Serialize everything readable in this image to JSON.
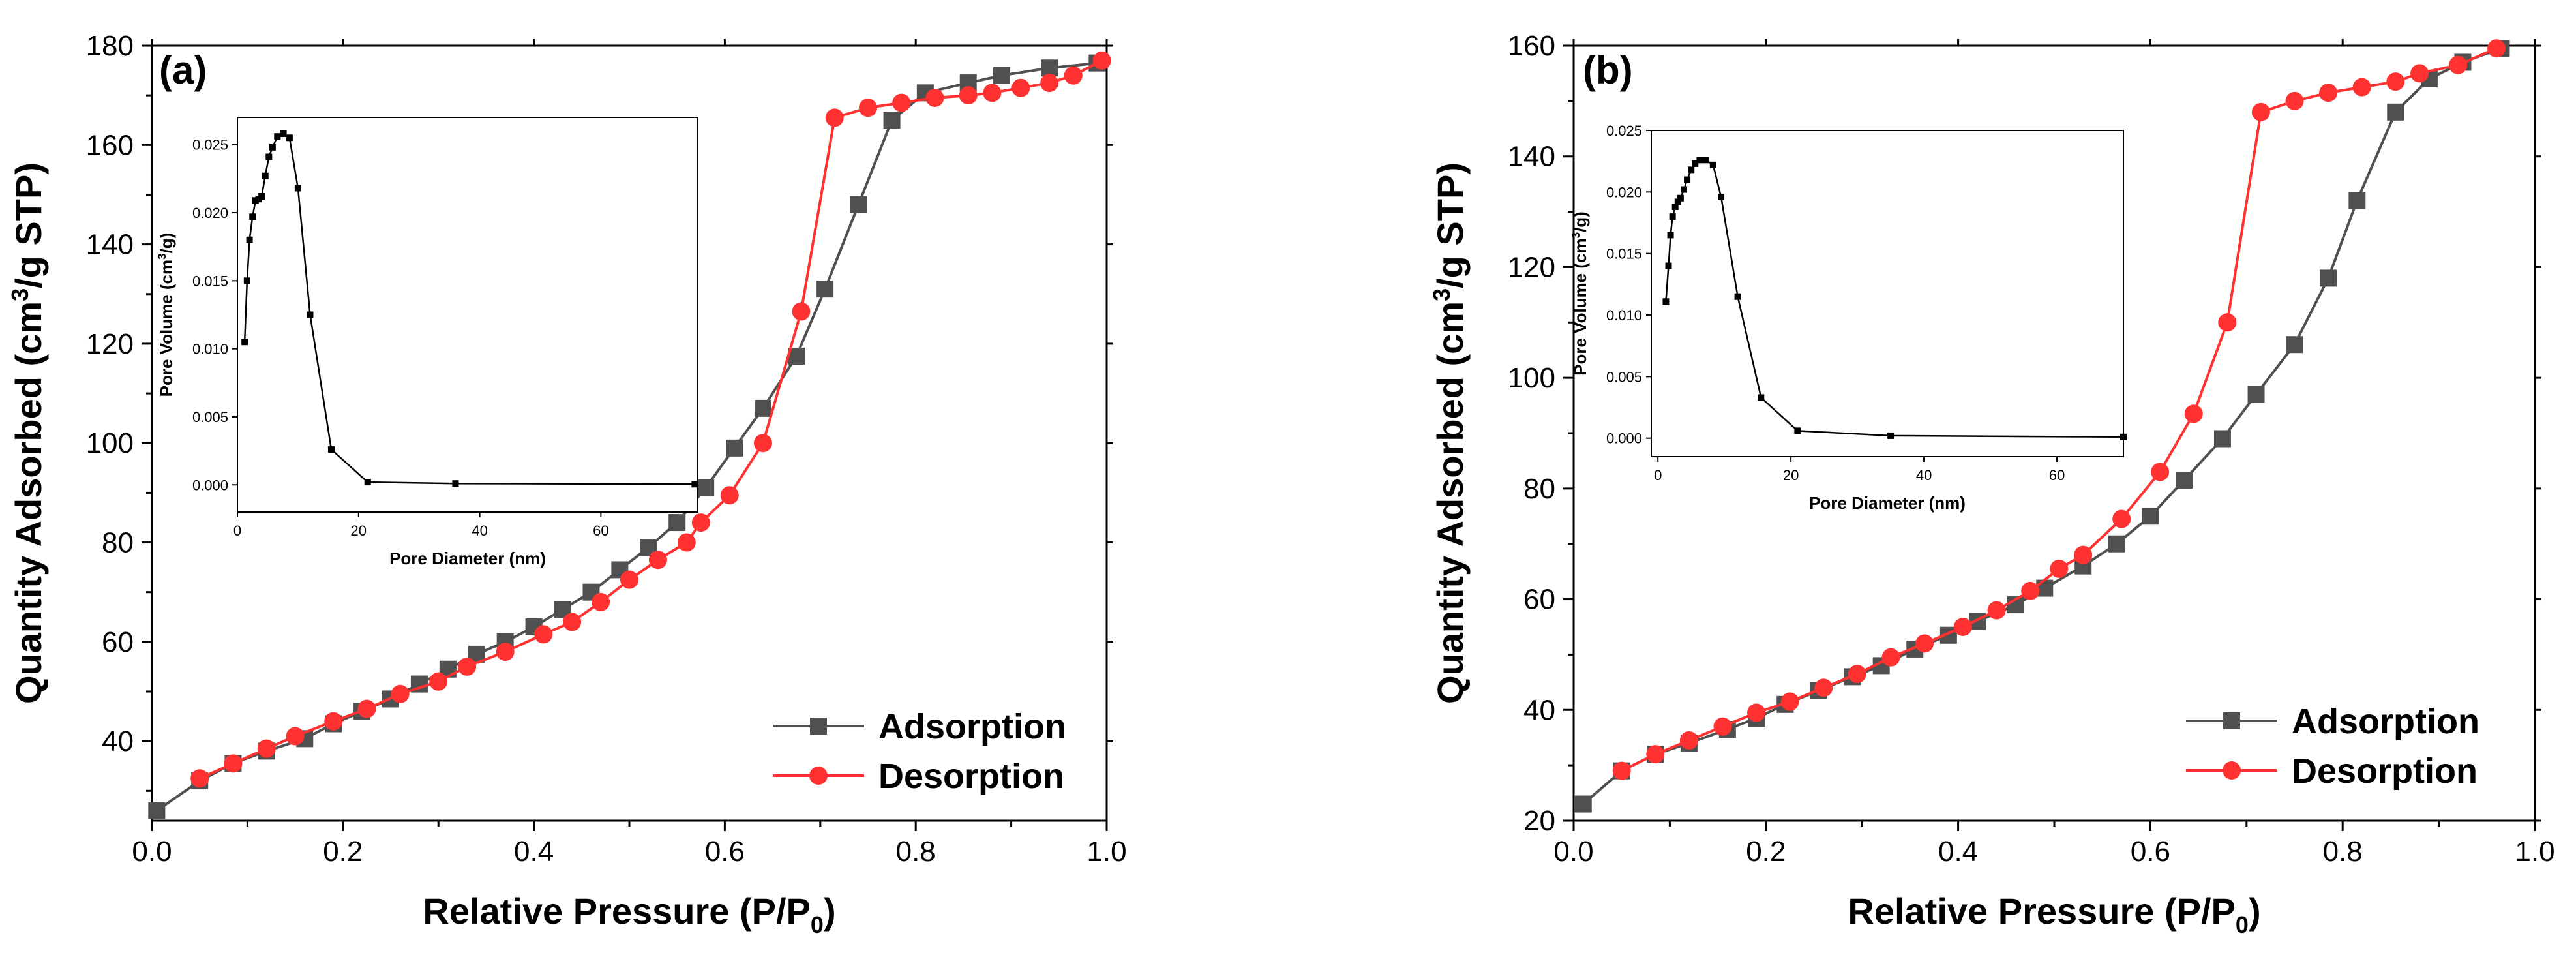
{
  "colors": {
    "adsorption": "#505050",
    "desorption": "#ff3131",
    "axis": "#000000"
  },
  "chart_data": [
    {
      "type": "line",
      "panel_label": "(a)",
      "xlabel": "Relative Pressure (P/P",
      "xlabel_sub": "0",
      "xlabel_end": ")",
      "ylabel": "Quantity Adsorbed (cm",
      "ylabel_sup": "3",
      "ylabel_end": "/g STP)",
      "xlim": [
        0,
        1.0
      ],
      "ylim": [
        24,
        180
      ],
      "xticks": [
        0.0,
        0.2,
        0.4,
        0.6,
        0.8,
        1.0
      ],
      "xtick_labels": [
        "0.0",
        "0.2",
        "0.4",
        "0.6",
        "0.8",
        "1.0"
      ],
      "yticks": [
        40,
        60,
        80,
        100,
        120,
        140,
        160,
        180
      ],
      "ytick_labels": [
        "40",
        "60",
        "80",
        "100",
        "120",
        "140",
        "160",
        "180"
      ],
      "legend": [
        "Adsorption",
        "Desorption"
      ],
      "series": [
        {
          "name": "Adsorption",
          "marker": "square",
          "x": [
            0.005,
            0.05,
            0.085,
            0.12,
            0.16,
            0.19,
            0.22,
            0.25,
            0.28,
            0.31,
            0.34,
            0.37,
            0.4,
            0.43,
            0.46,
            0.49,
            0.52,
            0.55,
            0.58,
            0.61,
            0.64,
            0.675,
            0.705,
            0.74,
            0.775,
            0.81,
            0.855,
            0.89,
            0.94,
            0.99
          ],
          "y": [
            26,
            32,
            35.5,
            38,
            40.5,
            43.5,
            46,
            48.5,
            51.5,
            54.5,
            57.5,
            60,
            63,
            66.5,
            70,
            74.5,
            79,
            84,
            91,
            99,
            107,
            117.5,
            131,
            148,
            165,
            170.5,
            172.5,
            174,
            175.5,
            176.5
          ]
        },
        {
          "name": "Desorption",
          "marker": "circle",
          "x": [
            0.05,
            0.085,
            0.12,
            0.15,
            0.19,
            0.225,
            0.26,
            0.3,
            0.33,
            0.37,
            0.41,
            0.44,
            0.47,
            0.5,
            0.53,
            0.56,
            0.575,
            0.605,
            0.64,
            0.68,
            0.715,
            0.75,
            0.785,
            0.82,
            0.855,
            0.88,
            0.91,
            0.94,
            0.965,
            0.995
          ],
          "y": [
            32.5,
            35.5,
            38.5,
            41,
            44,
            46.5,
            49.5,
            52,
            55,
            58,
            61.5,
            64,
            68,
            72.5,
            76.5,
            80,
            84,
            89.5,
            100,
            126.5,
            165.5,
            167.5,
            168.5,
            169.5,
            170,
            170.5,
            171.5,
            172.5,
            174,
            177
          ]
        }
      ],
      "inset": {
        "xlabel": "Pore Diameter (nm)",
        "ylabel": "Pore Volume (cm",
        "ylabel_sup": "3",
        "ylabel_end": "/g)",
        "xlim": [
          0,
          76
        ],
        "ylim": [
          -0.002,
          0.027
        ],
        "xticks": [
          0,
          20,
          40,
          60
        ],
        "xtick_labels": [
          "0",
          "20",
          "40",
          "60"
        ],
        "yticks": [
          0.0,
          0.005,
          0.01,
          0.015,
          0.02,
          0.025
        ],
        "ytick_labels": [
          "0.000",
          "0.005",
          "0.010",
          "0.015",
          "0.020",
          "0.025"
        ],
        "x": [
          1.2,
          1.6,
          2.0,
          2.5,
          3.0,
          3.5,
          4.0,
          4.6,
          5.2,
          5.8,
          6.6,
          7.6,
          8.6,
          10.0,
          12.0,
          15.5,
          21.5,
          36.0,
          75.5
        ],
        "y": [
          0.0105,
          0.015,
          0.018,
          0.0197,
          0.0209,
          0.021,
          0.0212,
          0.0227,
          0.0241,
          0.0248,
          0.0256,
          0.0258,
          0.0255,
          0.0218,
          0.0125,
          0.0026,
          0.0002,
          0.0001,
          5e-05
        ]
      }
    },
    {
      "type": "line",
      "panel_label": "(b)",
      "xlabel": "Relative Pressure (P/P",
      "xlabel_sub": "0",
      "xlabel_end": ")",
      "ylabel": "Quantity Adsorbed (cm",
      "ylabel_sup": "3",
      "ylabel_end": "/g STP)",
      "xlim": [
        0,
        1.0
      ],
      "ylim": [
        20,
        160
      ],
      "xticks": [
        0.0,
        0.2,
        0.4,
        0.6,
        0.8,
        1.0
      ],
      "xtick_labels": [
        "0.0",
        "0.2",
        "0.4",
        "0.6",
        "0.8",
        "1.0"
      ],
      "yticks": [
        20,
        40,
        60,
        80,
        100,
        120,
        140,
        160
      ],
      "ytick_labels": [
        "20",
        "40",
        "60",
        "80",
        "100",
        "120",
        "140",
        "160"
      ],
      "legend": [
        "Adsorption",
        "Desorption"
      ],
      "series": [
        {
          "name": "Adsorption",
          "marker": "square",
          "x": [
            0.01,
            0.05,
            0.085,
            0.12,
            0.16,
            0.19,
            0.22,
            0.255,
            0.29,
            0.32,
            0.355,
            0.39,
            0.42,
            0.46,
            0.49,
            0.53,
            0.565,
            0.6,
            0.635,
            0.675,
            0.71,
            0.75,
            0.785,
            0.815,
            0.855,
            0.89,
            0.925,
            0.965
          ],
          "y": [
            23,
            29,
            32,
            34,
            36.5,
            38.5,
            41,
            43.5,
            46,
            48,
            51,
            53.5,
            56,
            59,
            62,
            66,
            70,
            75,
            81.5,
            89,
            97,
            106,
            118,
            132,
            148,
            154,
            157,
            159.5
          ]
        },
        {
          "name": "Desorption",
          "marker": "circle",
          "x": [
            0.05,
            0.085,
            0.12,
            0.155,
            0.19,
            0.225,
            0.26,
            0.295,
            0.33,
            0.365,
            0.405,
            0.44,
            0.475,
            0.505,
            0.53,
            0.57,
            0.61,
            0.645,
            0.68,
            0.715,
            0.75,
            0.785,
            0.82,
            0.855,
            0.88,
            0.92,
            0.96
          ],
          "y": [
            29,
            32,
            34.5,
            37,
            39.5,
            41.5,
            44,
            46.5,
            49.5,
            52,
            55,
            58,
            61.5,
            65.5,
            68,
            74.5,
            83,
            93.5,
            110,
            148,
            150,
            151.5,
            152.5,
            153.5,
            155,
            156.5,
            159.5
          ]
        }
      ],
      "inset": {
        "xlabel": "Pore Diameter (nm)",
        "ylabel": "Pore Volume (cm",
        "ylabel_sup": "3",
        "ylabel_end": "/g)",
        "xlim": [
          -1,
          70
        ],
        "ylim": [
          -0.0015,
          0.025
        ],
        "xticks": [
          0,
          20,
          40,
          60
        ],
        "xtick_labels": [
          "0",
          "20",
          "40",
          "60"
        ],
        "yticks": [
          0.0,
          0.005,
          0.01,
          0.015,
          0.02,
          0.025
        ],
        "ytick_labels": [
          "0.000",
          "0.005",
          "0.010",
          "0.015",
          "0.020",
          "0.025"
        ],
        "x": [
          1.2,
          1.6,
          1.9,
          2.2,
          2.6,
          3.0,
          3.4,
          3.9,
          4.4,
          5.0,
          5.6,
          6.3,
          7.2,
          8.3,
          9.5,
          12.0,
          15.5,
          21.0,
          35.0,
          70.0
        ],
        "y": [
          0.0111,
          0.014,
          0.0165,
          0.018,
          0.0188,
          0.0192,
          0.0195,
          0.0202,
          0.021,
          0.0218,
          0.0223,
          0.0226,
          0.0226,
          0.0222,
          0.0196,
          0.0115,
          0.0033,
          0.0006,
          0.0002,
          0.0001
        ]
      }
    }
  ]
}
